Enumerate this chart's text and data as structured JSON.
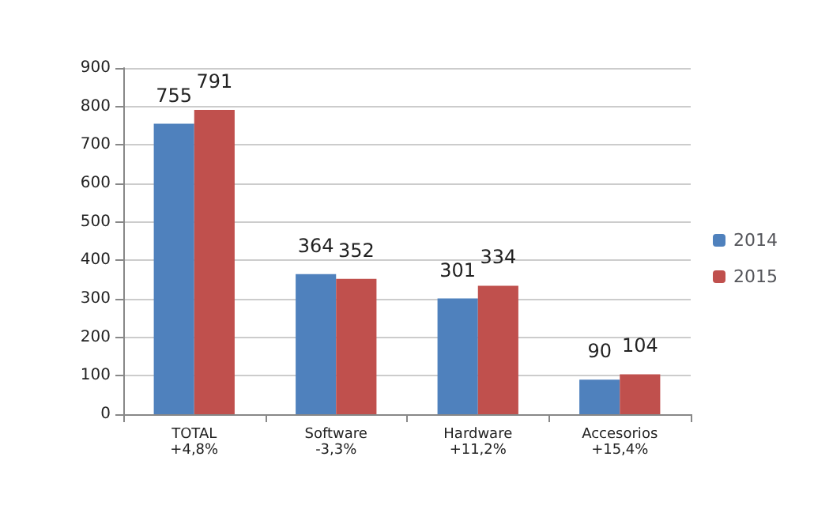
{
  "chart_data": {
    "type": "bar",
    "categories": [
      "TOTAL\n+4,8%",
      "Software\n-3,3%",
      "Hardware\n+11,2%",
      "Accesorios\n+15,4%"
    ],
    "series": [
      {
        "name": "2014",
        "color": "#4f81bd",
        "values": [
          755,
          364,
          301,
          90
        ]
      },
      {
        "name": "2015",
        "color": "#c0504d",
        "values": [
          791,
          352,
          334,
          104
        ]
      }
    ],
    "ylim": [
      0,
      900
    ],
    "yticks": [
      0,
      100,
      200,
      300,
      400,
      500,
      600,
      700,
      800,
      900
    ],
    "grid": "y",
    "legend": "right",
    "data_labels": true
  }
}
